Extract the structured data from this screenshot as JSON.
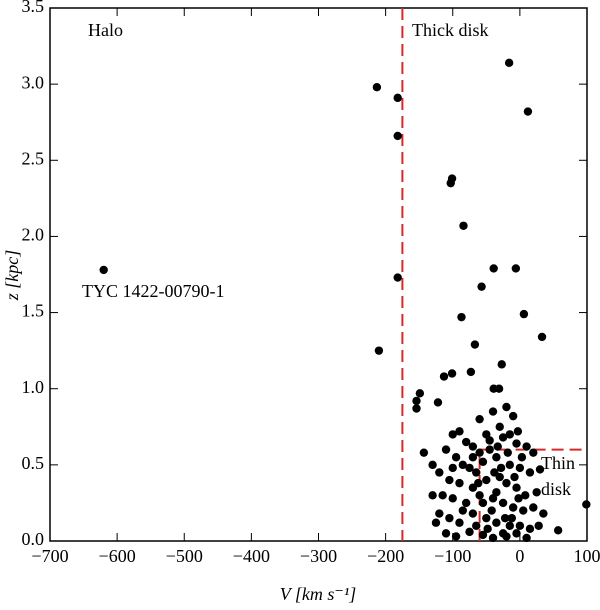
{
  "chart_data": {
    "type": "scatter",
    "x_label": "V [km s⁻¹]",
    "y_label": "z [kpc]",
    "xlim": [
      -700,
      100
    ],
    "ylim": [
      0,
      3.5
    ],
    "xticks": [
      {
        "value": -700,
        "label": "−700"
      },
      {
        "value": -600,
        "label": "−600"
      },
      {
        "value": -500,
        "label": "−500"
      },
      {
        "value": -400,
        "label": "−400"
      },
      {
        "value": -300,
        "label": "−300"
      },
      {
        "value": -200,
        "label": "−200"
      },
      {
        "value": -100,
        "label": "−100"
      },
      0,
      100
    ],
    "yticks": [
      {
        "value": 0,
        "label": "0.0"
      },
      0.5,
      {
        "value": 1,
        "label": "1.0"
      },
      1.5,
      {
        "value": 2,
        "label": "2.0"
      },
      2.5,
      {
        "value": 3,
        "label": "3.0"
      },
      3.5
    ],
    "color": "#000000",
    "boundary_color": "#d42a2a",
    "thick_disk_boundary_v": -175,
    "thin_disk_box": {
      "v": [
        -60,
        100
      ],
      "z": [
        0,
        0.6
      ]
    },
    "annotations": [
      "Halo",
      "Thick disk",
      "Thin",
      "disk",
      "TYC 1422-00790-1"
    ],
    "x": [
      -620,
      -213,
      -182,
      -182,
      -182,
      -210,
      -16,
      12,
      -101,
      -103,
      -84,
      -39,
      -6,
      -57,
      6,
      -87,
      33,
      -67,
      -27,
      -113,
      -101,
      -73,
      -149,
      -154,
      -154,
      -122,
      -39,
      -31,
      99,
      57,
      -143,
      -60,
      -40,
      -20,
      -10,
      -30,
      -50,
      -90,
      -100,
      -80,
      -70,
      -45,
      -25,
      -5,
      10,
      20,
      -110,
      -95,
      -85,
      -75,
      -65,
      -55,
      -35,
      -15,
      0,
      15,
      30,
      -120,
      -105,
      -90,
      -70,
      -50,
      -30,
      -20,
      -5,
      8,
      25,
      -115,
      -100,
      -80,
      -60,
      -40,
      -25,
      -10,
      5,
      20,
      35,
      -120,
      -105,
      -90,
      -70,
      -50,
      -35,
      -15,
      0,
      15,
      -110,
      -95,
      -75,
      -55,
      -40,
      -20,
      -5,
      10,
      -130,
      -125,
      -60,
      -45,
      -35,
      -28,
      -18,
      -12,
      -8,
      -2,
      3,
      -42,
      -48,
      -65,
      -85,
      -25,
      -33,
      -15,
      -55,
      -62,
      -22,
      -38,
      -3,
      -70,
      28,
      -100,
      -130
    ],
    "y": [
      1.78,
      2.98,
      2.91,
      2.66,
      1.73,
      1.25,
      3.14,
      2.82,
      2.38,
      2.35,
      2.07,
      1.79,
      1.79,
      1.67,
      1.49,
      1.47,
      1.34,
      1.29,
      1.16,
      1.08,
      1.1,
      1.11,
      0.97,
      0.92,
      0.87,
      0.91,
      1.0,
      1.0,
      0.24,
      0.07,
      0.58,
      0.8,
      0.85,
      0.88,
      0.82,
      0.75,
      0.7,
      0.72,
      0.7,
      0.65,
      0.62,
      0.66,
      0.68,
      0.64,
      0.62,
      0.58,
      0.6,
      0.55,
      0.5,
      0.48,
      0.45,
      0.52,
      0.55,
      0.5,
      0.48,
      0.45,
      0.47,
      0.45,
      0.4,
      0.38,
      0.35,
      0.4,
      0.42,
      0.38,
      0.35,
      0.3,
      0.32,
      0.3,
      0.28,
      0.25,
      0.3,
      0.28,
      0.25,
      0.22,
      0.2,
      0.22,
      0.18,
      0.18,
      0.15,
      0.12,
      0.18,
      0.15,
      0.12,
      0.1,
      0.1,
      0.08,
      0.05,
      0.03,
      0.06,
      0.04,
      0.02,
      0.03,
      0.05,
      0.02,
      0.5,
      0.12,
      0.58,
      0.6,
      0.32,
      0.48,
      0.58,
      0.15,
      0.42,
      0.28,
      0.55,
      0.2,
      0.08,
      0.1,
      0.2,
      0.05,
      0.62,
      0.7,
      0.25,
      0.38,
      0.15,
      0.45,
      0.72,
      0.55,
      0.1,
      0.48,
      0.3
    ]
  }
}
